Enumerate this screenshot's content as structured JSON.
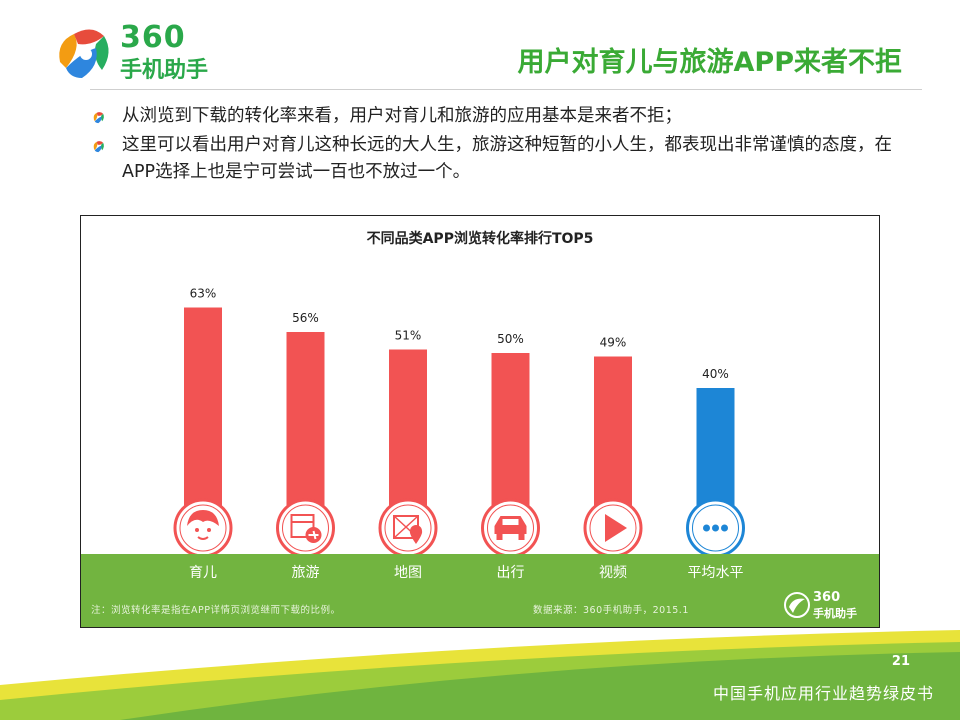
{
  "logo": {
    "top_text": "360",
    "bottom_text": "手机助手"
  },
  "header": {
    "title": "用户对育儿与旅游APP来者不拒"
  },
  "bullets": [
    "从浏览到下载的转化率来看，用户对育儿和旅游的应用基本是来者不拒；",
    "这里可以看出用户对育儿这种长远的大人生，旅游这种短暂的小人生，都表现出非常谨慎的态度，在APP选择上也是宁可尝试一百也不放过一个。"
  ],
  "chart_data": {
    "type": "bar",
    "title": "不同品类APP浏览转化率排行TOP5",
    "categories": [
      "育儿",
      "旅游",
      "地图",
      "出行",
      "视频",
      "平均水平"
    ],
    "values": [
      63,
      56,
      51,
      50,
      49,
      40
    ],
    "value_labels": [
      "63%",
      "56%",
      "51%",
      "50%",
      "49%",
      "40%"
    ],
    "unit": "%",
    "icons": [
      "baby-face-icon",
      "calendar-plane-icon",
      "map-pin-icon",
      "car-icon",
      "play-icon",
      "more-dots-icon"
    ],
    "colors": {
      "top5": "#f25353",
      "average": "#1d86d6"
    },
    "grid": false,
    "legend": "none"
  },
  "chart_footer": {
    "note": "注：浏览转化率是指在APP详情页浏览继而下载的比例。",
    "source": "数据来源：360手机助手，2015.1",
    "mini_logo_top": "360",
    "mini_logo_bottom": "手机助手"
  },
  "footer": {
    "page_number": "21",
    "report_title": "中国手机应用行业趋势绿皮书"
  },
  "colors": {
    "brand_green": "#3aaa35",
    "band_green": "#72b440",
    "accent_yellow": "#e8e33a"
  }
}
